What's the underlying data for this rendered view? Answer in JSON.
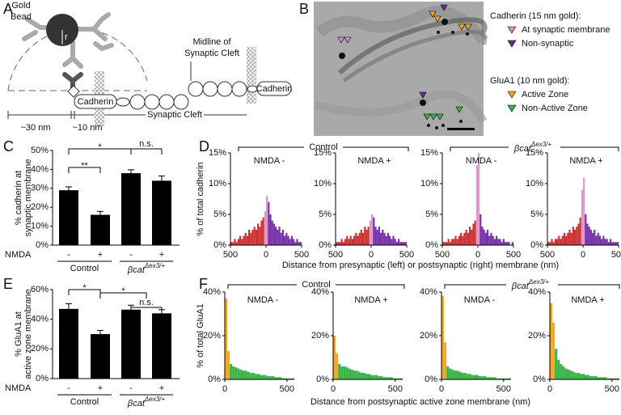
{
  "panel_labels": [
    "A",
    "B",
    "C",
    "D",
    "E",
    "F"
  ],
  "diagram": {
    "gold": "Gold",
    "bead": "Bead",
    "r": "r",
    "midline_1": "Midline of",
    "midline_2": "Synaptic Cleft",
    "cadherin_left": "Cadherin",
    "cadherin_right": "Cadherin",
    "dist_30": "~30 nm",
    "dist_10": "~10 nm",
    "cleft": "Synaptic Cleft"
  },
  "legend": {
    "cadherin_title": "Cadherin (15 nm gold):",
    "cadherin_items": [
      {
        "label": "At synaptic membrane",
        "color": "#d48fc8"
      },
      {
        "label": "Non-synaptic",
        "color": "#6a2c8e"
      }
    ],
    "glua1_title": "GluA1 (10 nm gold):",
    "glua1_items": [
      {
        "label": "Active Zone",
        "color": "#f5a623"
      },
      {
        "label": "Non-Active Zone",
        "color": "#3cb44a"
      }
    ]
  },
  "groups": {
    "control": "Control",
    "mutant": "βcat",
    "mutant_sup": "Δex3/+"
  },
  "d_labels": {
    "ylabel": "% of total cadherin",
    "xlabel": "Distance from presynaptic (left) or postsynaptic (right) membrane (nm)"
  },
  "f_labels": {
    "ylabel": "% of total GluA1",
    "xlabel": "Distance from postsynaptic active zone membrane (nm)"
  },
  "chart_data": [
    {
      "type": "bar",
      "ylabel": [
        "% cadherin at",
        "synaptic membrane"
      ],
      "xlabel": "NMDA",
      "categories": [
        "-",
        "+",
        "-",
        "+"
      ],
      "values": [
        29,
        16,
        38,
        34
      ],
      "errors": [
        1.8,
        1.8,
        1.8,
        2.5
      ],
      "color": "#000000",
      "ylim": [
        0,
        50
      ],
      "yticks": [
        {
          "value": 0,
          "label": "0%"
        },
        {
          "value": 10,
          "label": "10%"
        },
        {
          "value": 20,
          "label": "20%"
        },
        {
          "value": 30,
          "label": "30%"
        },
        {
          "value": 40,
          "label": "40%"
        },
        {
          "value": 50,
          "label": "50%"
        }
      ],
      "annotations": [
        "*",
        "**",
        "n.s."
      ]
    },
    {
      "type": "histogram",
      "title": "NMDA -",
      "xlim": [
        -500,
        500
      ],
      "ylim": [
        0,
        15
      ],
      "xticks": [
        {
          "value": -500,
          "label": "500"
        },
        0,
        500
      ],
      "yticks": [
        {
          "value": 0,
          "label": "0%"
        },
        {
          "value": 5,
          "label": "5%"
        },
        {
          "value": 10,
          "label": "10%"
        },
        {
          "value": 15,
          "label": "15%"
        }
      ],
      "bins": [
        -500,
        -475,
        -450,
        -425,
        -400,
        -375,
        -350,
        -325,
        -300,
        -275,
        -250,
        -225,
        -200,
        -175,
        -150,
        -125,
        -100,
        -75,
        -50,
        -25,
        0,
        25,
        50,
        75,
        100,
        125,
        150,
        175,
        200,
        225,
        250,
        275,
        300,
        325,
        350,
        375,
        400,
        425,
        450,
        475,
        500
      ],
      "values": [
        0.5,
        0.5,
        1,
        0.5,
        1,
        1.5,
        1,
        1.5,
        2,
        1.5,
        2.5,
        2,
        2.5,
        3,
        2.5,
        3.5,
        3,
        4,
        4.5,
        5.5,
        8,
        7,
        5,
        4,
        3.5,
        3,
        2.5,
        3,
        2,
        2.5,
        1.5,
        2,
        1.5,
        1,
        1.5,
        1,
        0.5,
        1,
        0.5,
        0.5
      ],
      "colors": [
        "#c33",
        "#c33",
        "#c33",
        "#c33",
        "#c33",
        "#c33",
        "#c33",
        "#c33",
        "#c33",
        "#c33",
        "#c33",
        "#c33",
        "#c33",
        "#c33",
        "#c33",
        "#c33",
        "#c33",
        "#c33",
        "#c33",
        "#d9c",
        "#d9c",
        "#73a",
        "#73a",
        "#73a",
        "#73a",
        "#73a",
        "#73a",
        "#73a",
        "#73a",
        "#73a",
        "#73a",
        "#73a",
        "#73a",
        "#73a",
        "#73a",
        "#73a",
        "#73a",
        "#73a",
        "#73a",
        "#73a"
      ]
    },
    {
      "type": "histogram",
      "title": "NMDA +",
      "xlim": [
        -500,
        500
      ],
      "ylim": [
        0,
        15
      ],
      "xticks": [
        {
          "value": -500,
          "label": "500"
        },
        0,
        500
      ],
      "yticks": [
        {
          "value": 0,
          "label": "0%"
        },
        {
          "value": 5,
          "label": "5%"
        },
        {
          "value": 10,
          "label": "10%"
        },
        {
          "value": 15,
          "label": "15%"
        }
      ],
      "bins": [
        -500,
        -475,
        -450,
        -425,
        -400,
        -375,
        -350,
        -325,
        -300,
        -275,
        -250,
        -225,
        -200,
        -175,
        -150,
        -125,
        -100,
        -75,
        -50,
        -25,
        0,
        25,
        50,
        75,
        100,
        125,
        150,
        175,
        200,
        225,
        250,
        275,
        300,
        325,
        350,
        375,
        400,
        425,
        450,
        475,
        500
      ],
      "values": [
        0.5,
        0.5,
        0.5,
        1,
        0.5,
        1,
        1.5,
        1,
        1.5,
        1,
        1.5,
        2,
        1.5,
        2,
        2.5,
        2,
        3,
        2.5,
        3,
        4,
        5,
        4.5,
        3,
        2.5,
        3,
        2,
        2.5,
        2,
        1.5,
        2,
        1.5,
        1,
        1.5,
        1,
        0.5,
        1,
        0.5,
        0.5,
        0.5,
        0.5
      ],
      "colors": [
        "#c33",
        "#c33",
        "#c33",
        "#c33",
        "#c33",
        "#c33",
        "#c33",
        "#c33",
        "#c33",
        "#c33",
        "#c33",
        "#c33",
        "#c33",
        "#c33",
        "#c33",
        "#c33",
        "#c33",
        "#c33",
        "#c33",
        "#d9c",
        "#d9c",
        "#73a",
        "#73a",
        "#73a",
        "#73a",
        "#73a",
        "#73a",
        "#73a",
        "#73a",
        "#73a",
        "#73a",
        "#73a",
        "#73a",
        "#73a",
        "#73a",
        "#73a",
        "#73a",
        "#73a",
        "#73a",
        "#73a"
      ]
    },
    {
      "type": "histogram",
      "title": "NMDA -",
      "xlim": [
        -500,
        500
      ],
      "ylim": [
        0,
        15
      ],
      "xticks": [
        {
          "value": -500,
          "label": "500"
        },
        0,
        500
      ],
      "yticks": [
        {
          "value": 0,
          "label": "0%"
        },
        {
          "value": 5,
          "label": "5%"
        },
        {
          "value": 10,
          "label": "10%"
        },
        {
          "value": 15,
          "label": "15%"
        }
      ],
      "bins": [
        -500,
        -475,
        -450,
        -425,
        -400,
        -375,
        -350,
        -325,
        -300,
        -275,
        -250,
        -225,
        -200,
        -175,
        -150,
        -125,
        -100,
        -75,
        -50,
        -25,
        0,
        25,
        50,
        75,
        100,
        125,
        150,
        175,
        200,
        225,
        250,
        275,
        300,
        325,
        350,
        375,
        400,
        425,
        450,
        475,
        500
      ],
      "values": [
        0.5,
        0.5,
        0.5,
        1,
        0.5,
        1,
        1,
        1.5,
        1,
        1.5,
        2,
        1.5,
        2,
        2.5,
        2,
        3,
        2.5,
        3.5,
        4,
        13,
        15,
        5,
        3,
        2.5,
        2,
        2.5,
        1.5,
        2,
        1.5,
        1,
        1.5,
        1,
        1,
        0.5,
        1,
        0.5,
        0.5,
        0.5,
        0,
        0.5
      ],
      "colors": [
        "#c33",
        "#c33",
        "#c33",
        "#c33",
        "#c33",
        "#c33",
        "#c33",
        "#c33",
        "#c33",
        "#c33",
        "#c33",
        "#c33",
        "#c33",
        "#c33",
        "#c33",
        "#c33",
        "#c33",
        "#c33",
        "#c33",
        "#d9c",
        "#d9c",
        "#73a",
        "#73a",
        "#73a",
        "#73a",
        "#73a",
        "#73a",
        "#73a",
        "#73a",
        "#73a",
        "#73a",
        "#73a",
        "#73a",
        "#73a",
        "#73a",
        "#73a",
        "#73a",
        "#73a",
        "#73a",
        "#73a"
      ]
    },
    {
      "type": "histogram",
      "title": "NMDA +",
      "xlim": [
        -500,
        500
      ],
      "ylim": [
        0,
        15
      ],
      "xticks": [
        {
          "value": -500,
          "label": "500"
        },
        0,
        500
      ],
      "yticks": [
        {
          "value": 0,
          "label": "0%"
        },
        {
          "value": 5,
          "label": "5%"
        },
        {
          "value": 10,
          "label": "10%"
        },
        {
          "value": 15,
          "label": "15%"
        }
      ],
      "bins": [
        -500,
        -475,
        -450,
        -425,
        -400,
        -375,
        -350,
        -325,
        -300,
        -275,
        -250,
        -225,
        -200,
        -175,
        -150,
        -125,
        -100,
        -75,
        -50,
        -25,
        0,
        25,
        50,
        75,
        100,
        125,
        150,
        175,
        200,
        225,
        250,
        275,
        300,
        325,
        350,
        375,
        400,
        425,
        450,
        475,
        500
      ],
      "values": [
        0.5,
        0.5,
        1,
        0.5,
        1,
        1,
        1.5,
        1,
        1.5,
        2,
        1.5,
        2,
        2.5,
        2,
        3,
        2.5,
        3,
        3.5,
        4.5,
        9,
        11,
        5,
        3.5,
        3,
        2.5,
        2,
        2.5,
        1.5,
        2,
        1.5,
        1,
        1.5,
        1,
        1,
        0.5,
        1,
        0.5,
        0.5,
        0.5,
        0.5
      ],
      "colors": [
        "#c33",
        "#c33",
        "#c33",
        "#c33",
        "#c33",
        "#c33",
        "#c33",
        "#c33",
        "#c33",
        "#c33",
        "#c33",
        "#c33",
        "#c33",
        "#c33",
        "#c33",
        "#c33",
        "#c33",
        "#c33",
        "#c33",
        "#d9c",
        "#d9c",
        "#73a",
        "#73a",
        "#73a",
        "#73a",
        "#73a",
        "#73a",
        "#73a",
        "#73a",
        "#73a",
        "#73a",
        "#73a",
        "#73a",
        "#73a",
        "#73a",
        "#73a",
        "#73a",
        "#73a",
        "#73a",
        "#73a"
      ]
    },
    {
      "type": "bar",
      "ylabel": [
        "% GluA1 at",
        "active zone membrane"
      ],
      "xlabel": "NMDA",
      "categories": [
        "-",
        "+",
        "-",
        "+"
      ],
      "values": [
        47,
        30,
        46.5,
        44
      ],
      "errors": [
        3.5,
        2.5,
        3,
        2.5
      ],
      "color": "#000000",
      "ylim": [
        0,
        60
      ],
      "yticks": [
        {
          "value": 0,
          "label": "0%"
        },
        {
          "value": 20,
          "label": "20%"
        },
        {
          "value": 40,
          "label": "40%"
        },
        {
          "value": 60,
          "label": "60%"
        }
      ],
      "annotations": [
        "*",
        "*",
        "n.s."
      ]
    },
    {
      "type": "histogram",
      "title": "NMDA -",
      "xlim": [
        0,
        560
      ],
      "ylim": [
        0,
        40
      ],
      "xticks": [
        0,
        500
      ],
      "yticks": [
        {
          "value": 0,
          "label": "0%"
        },
        {
          "value": 20,
          "label": "20%"
        },
        {
          "value": 40,
          "label": "40%"
        }
      ],
      "bins": [
        0,
        20,
        40,
        60,
        80,
        100,
        120,
        140,
        160,
        180,
        200,
        220,
        240,
        260,
        280,
        300,
        320,
        340,
        360,
        380,
        400,
        420,
        440,
        460,
        480,
        500,
        520,
        540,
        560
      ],
      "values": [
        37,
        13,
        7,
        6,
        5.5,
        5,
        4.5,
        4,
        4,
        3.5,
        3,
        3,
        2.5,
        2.5,
        2,
        2,
        2,
        1.5,
        1.5,
        1.5,
        1,
        1,
        1,
        0.5,
        0.5,
        0.5,
        0.5,
        0.5
      ],
      "colors": [
        "#f5a623",
        "#f5a623",
        "#3cb44a",
        "#3cb44a",
        "#3cb44a",
        "#3cb44a",
        "#3cb44a",
        "#3cb44a",
        "#3cb44a",
        "#3cb44a",
        "#3cb44a",
        "#3cb44a",
        "#3cb44a",
        "#3cb44a",
        "#3cb44a",
        "#3cb44a",
        "#3cb44a",
        "#3cb44a",
        "#3cb44a",
        "#3cb44a",
        "#3cb44a",
        "#3cb44a",
        "#3cb44a",
        "#3cb44a",
        "#3cb44a",
        "#3cb44a",
        "#3cb44a",
        "#3cb44a"
      ]
    },
    {
      "type": "histogram",
      "title": "NMDA +",
      "xlim": [
        0,
        560
      ],
      "ylim": [
        0,
        40
      ],
      "xticks": [
        0,
        500
      ],
      "yticks": [
        {
          "value": 0,
          "label": "0%"
        },
        {
          "value": 20,
          "label": "20%"
        },
        {
          "value": 40,
          "label": "40%"
        }
      ],
      "bins": [
        0,
        20,
        40,
        60,
        80,
        100,
        120,
        140,
        160,
        180,
        200,
        220,
        240,
        260,
        280,
        300,
        320,
        340,
        360,
        380,
        400,
        420,
        440,
        460,
        480,
        500,
        520,
        540,
        560
      ],
      "values": [
        20,
        12,
        7,
        6,
        6,
        5.5,
        5,
        4.5,
        4,
        4,
        3.5,
        3,
        3,
        2.5,
        2.5,
        2,
        2,
        2,
        1.5,
        1.5,
        1,
        1,
        1,
        1,
        0.5,
        0.5,
        0.5,
        0.5
      ],
      "colors": [
        "#f5a623",
        "#f5a623",
        "#3cb44a",
        "#3cb44a",
        "#3cb44a",
        "#3cb44a",
        "#3cb44a",
        "#3cb44a",
        "#3cb44a",
        "#3cb44a",
        "#3cb44a",
        "#3cb44a",
        "#3cb44a",
        "#3cb44a",
        "#3cb44a",
        "#3cb44a",
        "#3cb44a",
        "#3cb44a",
        "#3cb44a",
        "#3cb44a",
        "#3cb44a",
        "#3cb44a",
        "#3cb44a",
        "#3cb44a",
        "#3cb44a",
        "#3cb44a",
        "#3cb44a",
        "#3cb44a"
      ]
    },
    {
      "type": "histogram",
      "title": "NMDA -",
      "xlim": [
        0,
        560
      ],
      "ylim": [
        0,
        40
      ],
      "xticks": [
        0,
        500
      ],
      "yticks": [
        {
          "value": 0,
          "label": "0%"
        },
        {
          "value": 20,
          "label": "20%"
        },
        {
          "value": 40,
          "label": "40%"
        }
      ],
      "bins": [
        0,
        20,
        40,
        60,
        80,
        100,
        120,
        140,
        160,
        180,
        200,
        220,
        240,
        260,
        280,
        300,
        320,
        340,
        360,
        380,
        400,
        420,
        440,
        460,
        480,
        500,
        520,
        540,
        560
      ],
      "values": [
        38,
        17,
        6,
        5,
        4.5,
        4,
        4,
        3.5,
        3,
        3,
        2.5,
        2.5,
        2,
        2,
        2,
        1.5,
        1.5,
        1.5,
        1,
        1,
        1,
        1,
        0.5,
        0.5,
        0.5,
        0.5,
        0.5,
        0.5
      ],
      "colors": [
        "#f5a623",
        "#f5a623",
        "#3cb44a",
        "#3cb44a",
        "#3cb44a",
        "#3cb44a",
        "#3cb44a",
        "#3cb44a",
        "#3cb44a",
        "#3cb44a",
        "#3cb44a",
        "#3cb44a",
        "#3cb44a",
        "#3cb44a",
        "#3cb44a",
        "#3cb44a",
        "#3cb44a",
        "#3cb44a",
        "#3cb44a",
        "#3cb44a",
        "#3cb44a",
        "#3cb44a",
        "#3cb44a",
        "#3cb44a",
        "#3cb44a",
        "#3cb44a",
        "#3cb44a",
        "#3cb44a"
      ]
    },
    {
      "type": "histogram",
      "title": "NMDA +",
      "xlim": [
        0,
        560
      ],
      "ylim": [
        0,
        40
      ],
      "xticks": [
        0,
        500
      ],
      "yticks": [
        {
          "value": 0,
          "label": "0%"
        },
        {
          "value": 20,
          "label": "20%"
        },
        {
          "value": 40,
          "label": "40%"
        }
      ],
      "bins": [
        0,
        20,
        40,
        60,
        80,
        100,
        120,
        140,
        160,
        180,
        200,
        220,
        240,
        260,
        280,
        300,
        320,
        340,
        360,
        380,
        400,
        420,
        440,
        460,
        480,
        500,
        520,
        540,
        560
      ],
      "values": [
        35,
        26,
        14,
        9,
        7,
        6,
        5,
        4.5,
        4,
        3.5,
        3,
        3,
        2.5,
        2.5,
        2,
        2,
        1.5,
        1.5,
        1.5,
        1,
        1,
        1,
        1,
        0.5,
        0.5,
        0.5,
        0.5,
        0.5
      ],
      "colors": [
        "#f5a623",
        "#f5a623",
        "#3cb44a",
        "#3cb44a",
        "#3cb44a",
        "#3cb44a",
        "#3cb44a",
        "#3cb44a",
        "#3cb44a",
        "#3cb44a",
        "#3cb44a",
        "#3cb44a",
        "#3cb44a",
        "#3cb44a",
        "#3cb44a",
        "#3cb44a",
        "#3cb44a",
        "#3cb44a",
        "#3cb44a",
        "#3cb44a",
        "#3cb44a",
        "#3cb44a",
        "#3cb44a",
        "#3cb44a",
        "#3cb44a",
        "#3cb44a",
        "#3cb44a",
        "#3cb44a"
      ]
    }
  ]
}
